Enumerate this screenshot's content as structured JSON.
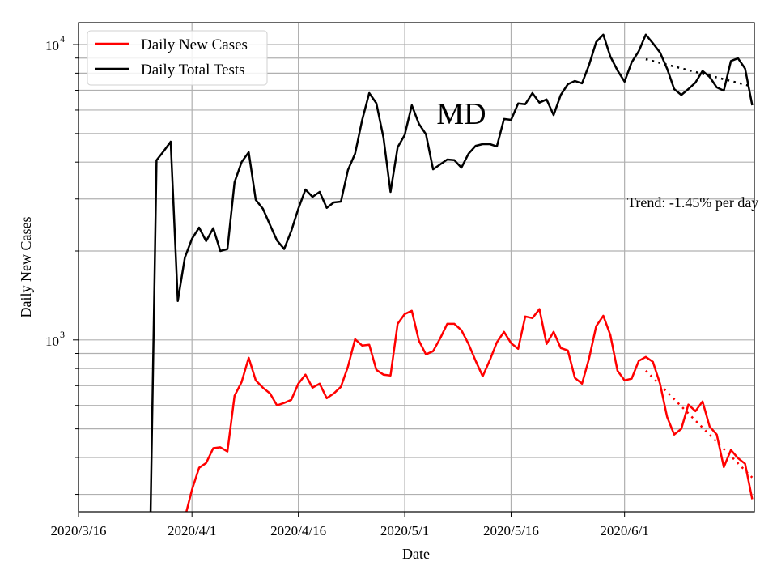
{
  "chart_data": {
    "type": "line",
    "title": "",
    "annotation_title": "MD",
    "trend_text": "Trend: -1.45% per day",
    "xlabel": "Date",
    "ylabel": "Daily New Cases",
    "yscale": "log",
    "ylim": [
      262,
      11860
    ],
    "xlim": [
      "2020-03-16",
      "2020-06-19"
    ],
    "grid": true,
    "legend_position": "top-left",
    "x_ticks": [
      {
        "date": "2020-03-16",
        "label": "2020/3/16"
      },
      {
        "date": "2020-04-01",
        "label": "2020/4/1"
      },
      {
        "date": "2020-04-16",
        "label": "2020/4/16"
      },
      {
        "date": "2020-05-01",
        "label": "2020/5/1"
      },
      {
        "date": "2020-05-16",
        "label": "2020/5/16"
      },
      {
        "date": "2020-06-01",
        "label": "2020/6/1"
      }
    ],
    "y_ticks": [
      {
        "value": 1000,
        "base": "10",
        "exp": "3"
      },
      {
        "value": 10000,
        "base": "10",
        "exp": "4"
      }
    ],
    "dates": [
      "2020-03-26",
      "2020-03-27",
      "2020-03-28",
      "2020-03-29",
      "2020-03-30",
      "2020-03-31",
      "2020-04-01",
      "2020-04-02",
      "2020-04-03",
      "2020-04-04",
      "2020-04-05",
      "2020-04-06",
      "2020-04-07",
      "2020-04-08",
      "2020-04-09",
      "2020-04-10",
      "2020-04-11",
      "2020-04-12",
      "2020-04-13",
      "2020-04-14",
      "2020-04-15",
      "2020-04-16",
      "2020-04-17",
      "2020-04-18",
      "2020-04-19",
      "2020-04-20",
      "2020-04-21",
      "2020-04-22",
      "2020-04-23",
      "2020-04-24",
      "2020-04-25",
      "2020-04-26",
      "2020-04-27",
      "2020-04-28",
      "2020-04-29",
      "2020-04-30",
      "2020-05-01",
      "2020-05-02",
      "2020-05-03",
      "2020-05-04",
      "2020-05-05",
      "2020-05-06",
      "2020-05-07",
      "2020-05-08",
      "2020-05-09",
      "2020-05-10",
      "2020-05-11",
      "2020-05-12",
      "2020-05-13",
      "2020-05-14",
      "2020-05-15",
      "2020-05-16",
      "2020-05-17",
      "2020-05-18",
      "2020-05-19",
      "2020-05-20",
      "2020-05-21",
      "2020-05-22",
      "2020-05-23",
      "2020-05-24",
      "2020-05-25",
      "2020-05-26",
      "2020-05-27",
      "2020-05-28",
      "2020-05-29",
      "2020-05-30",
      "2020-05-31",
      "2020-06-01",
      "2020-06-02",
      "2020-06-03",
      "2020-06-04",
      "2020-06-05",
      "2020-06-06",
      "2020-06-07",
      "2020-06-08",
      "2020-06-09",
      "2020-06-10",
      "2020-06-11",
      "2020-06-12",
      "2020-06-13",
      "2020-06-14",
      "2020-06-15",
      "2020-06-16",
      "2020-06-17",
      "2020-06-18",
      "2020-06-19"
    ],
    "series": [
      {
        "name": "Daily New Cases",
        "color": "#ff0000",
        "values": [
          null,
          null,
          null,
          null,
          null,
          250,
          311,
          369,
          383,
          430,
          433,
          419,
          647,
          720,
          870,
          730,
          689,
          659,
          600,
          612,
          627,
          711,
          763,
          689,
          711,
          635,
          659,
          694,
          812,
          1006,
          957,
          963,
          792,
          763,
          758,
          1134,
          1223,
          1255,
          994,
          893,
          916,
          1013,
          1134,
          1134,
          1079,
          969,
          849,
          753,
          854,
          981,
          1065,
          975,
          933,
          1201,
          1186,
          1272,
          969,
          1065,
          939,
          921,
          744,
          711,
          865,
          1113,
          1208,
          1039,
          787,
          730,
          739,
          849,
          876,
          843,
          711,
          549,
          478,
          500,
          604,
          574,
          619,
          509,
          478,
          371,
          424,
          398,
          381,
          289
        ],
        "trend": {
          "color": "#ff0000",
          "start": {
            "date": "2020-06-04",
            "value": 787
          },
          "end": {
            "date": "2020-06-19",
            "value": 342
          }
        }
      },
      {
        "name": "Daily Total Tests",
        "color": "#000000",
        "values": [
          150,
          4058,
          4350,
          4690,
          1354,
          1900,
          2200,
          2400,
          2160,
          2390,
          2000,
          2030,
          3420,
          4000,
          4320,
          2980,
          2780,
          2450,
          2170,
          2030,
          2340,
          2780,
          3230,
          3050,
          3170,
          2800,
          2920,
          2940,
          3760,
          4270,
          5560,
          6850,
          6330,
          4840,
          3170,
          4490,
          4940,
          6230,
          5390,
          4970,
          3780,
          3930,
          4080,
          4060,
          3830,
          4270,
          4540,
          4600,
          4600,
          4520,
          5600,
          5560,
          6320,
          6280,
          6850,
          6360,
          6520,
          5770,
          6750,
          7340,
          7530,
          7390,
          8530,
          10200,
          10800,
          9110,
          8180,
          7490,
          8700,
          9500,
          10800,
          10100,
          9400,
          8290,
          7070,
          6750,
          7070,
          7440,
          8140,
          7770,
          7160,
          6980,
          8800,
          8990,
          8290,
          6230
        ],
        "trend": {
          "color": "#000000",
          "start": {
            "date": "2020-06-04",
            "value": 8920
          },
          "end": {
            "date": "2020-06-19",
            "value": 7210
          }
        }
      }
    ]
  }
}
